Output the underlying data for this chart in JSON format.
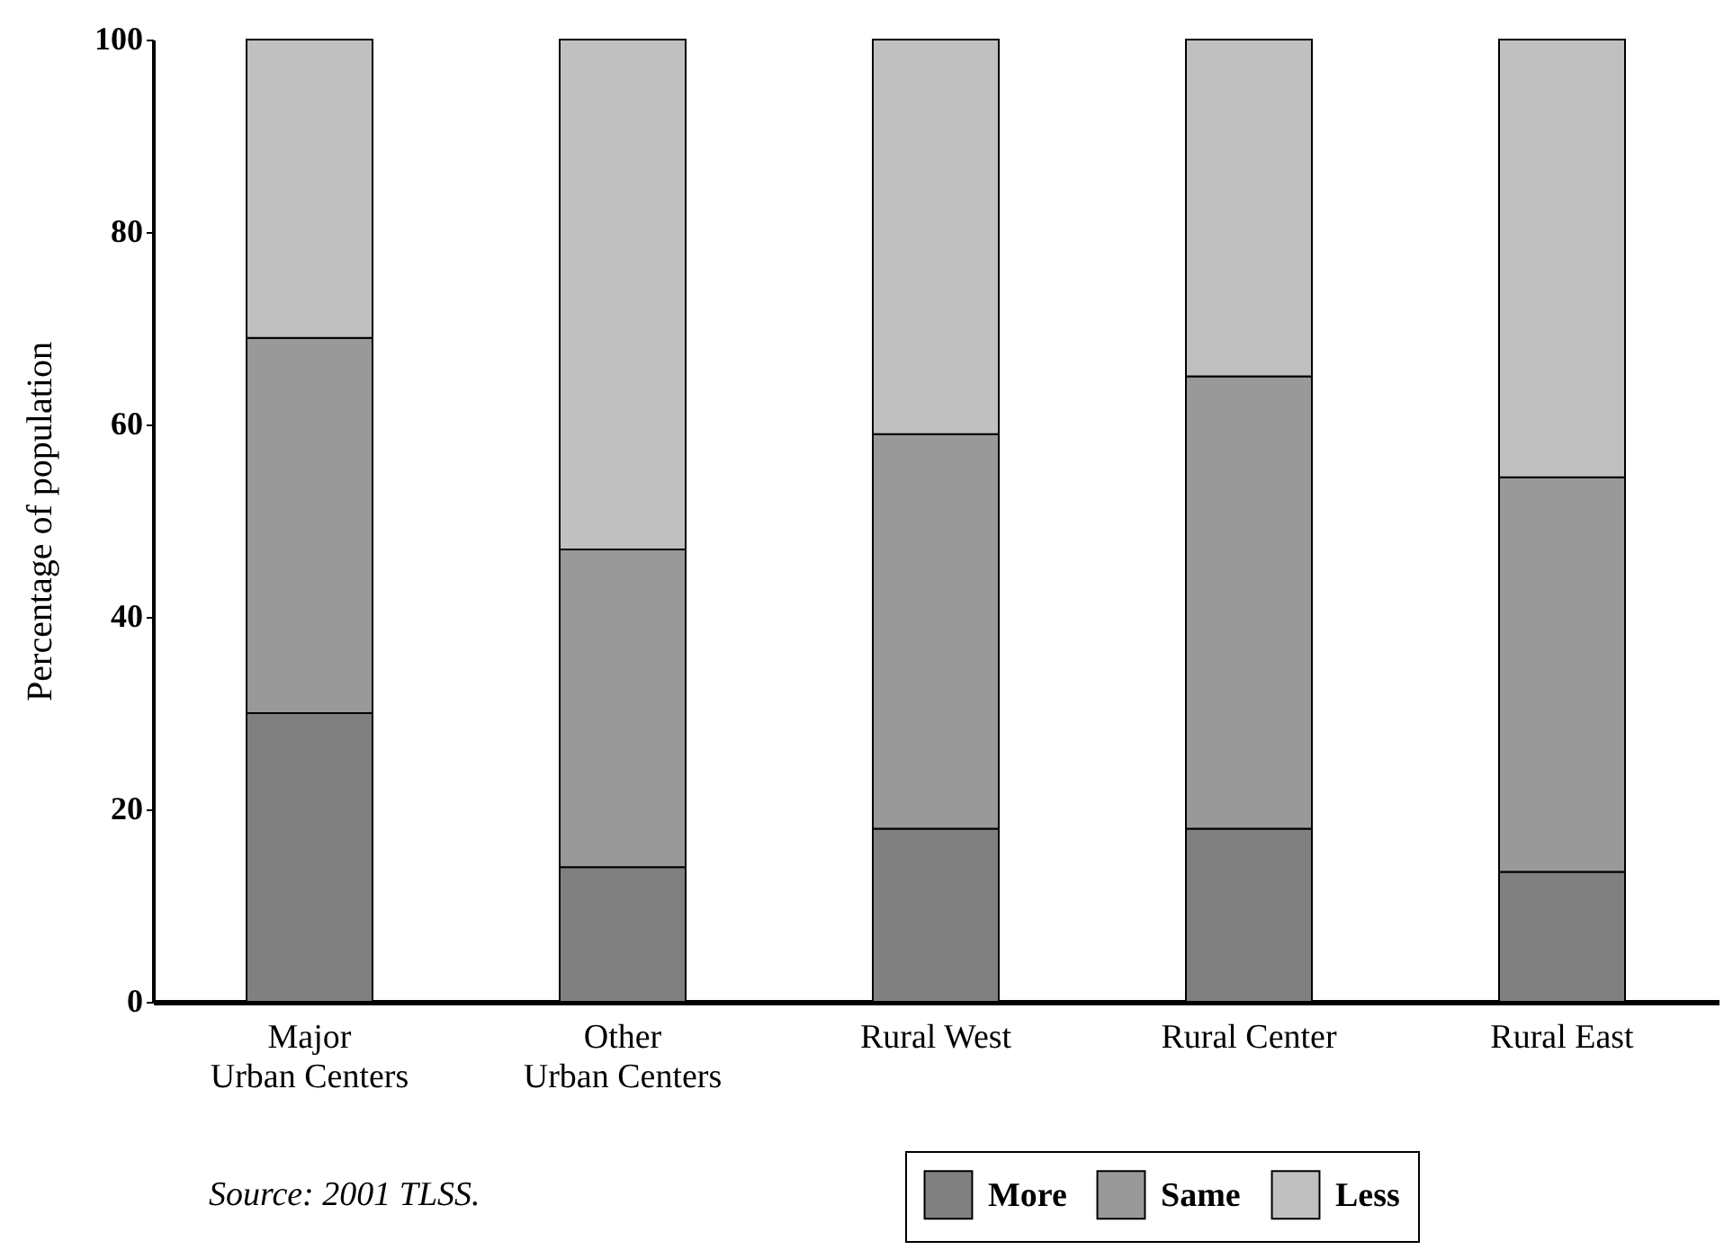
{
  "chart_data": {
    "type": "bar",
    "stacked": true,
    "ylabel": "Percentage of population",
    "categories": [
      "Major Urban Centers",
      "Other Urban Centers",
      "Rural West",
      "Rural Center",
      "Rural East"
    ],
    "series": [
      {
        "name": "More",
        "color": "#808080",
        "values": [
          30,
          14,
          18,
          18,
          13.5
        ]
      },
      {
        "name": "Same",
        "color": "#999999",
        "values": [
          39,
          33,
          41,
          47,
          41
        ]
      },
      {
        "name": "Less",
        "color": "#c0c0c0",
        "values": [
          31,
          53,
          41,
          35,
          45.5
        ]
      }
    ],
    "ylim": [
      0,
      100
    ],
    "yticks": [
      0,
      20,
      40,
      60,
      80,
      100
    ],
    "grid": false,
    "legend": "bottom right",
    "annotations": [
      "Source: 2001 TLSS."
    ]
  }
}
